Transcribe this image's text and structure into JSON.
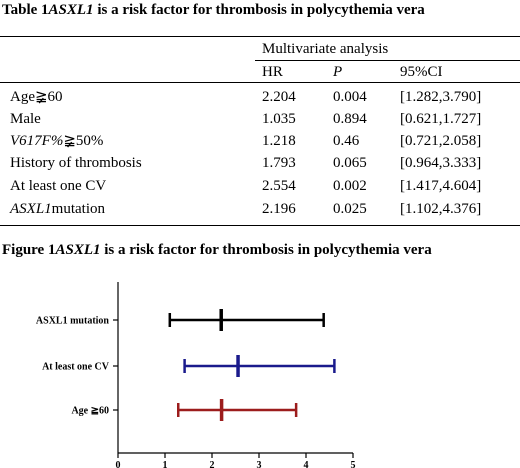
{
  "table": {
    "caption": {
      "number": "Table 1",
      "gene": "ASXL1",
      "rest": " is a risk factor for thrombosis in polycythemia vera"
    },
    "group_header": "Multivariate analysis",
    "columns": [
      "HR",
      "P",
      "95%CI"
    ],
    "rows": [
      {
        "label_pre": "Age≩60",
        "label_post": "",
        "hr": "2.204",
        "p": "0.004",
        "ci": "[1.282,3.790]"
      },
      {
        "label_pre": "Male",
        "label_post": "",
        "hr": "1.035",
        "p": "0.894",
        "ci": "[0.621,1.727]"
      },
      {
        "label_pre": "V617F%",
        "label_post": "≩50%",
        "hr": "1.218",
        "p": "0.46",
        "ci": "[0.721,2.058]"
      },
      {
        "label_pre": "History of thrombosis",
        "label_post": "",
        "hr": "1.793",
        "p": "0.065",
        "ci": "[0.964,3.333]"
      },
      {
        "label_pre": "At least one CV",
        "label_post": "",
        "hr": "2.554",
        "p": "0.002",
        "ci": "[1.417,4.604]"
      },
      {
        "label_pre": "ASXL1",
        "label_post": "mutation",
        "hr": "2.196",
        "p": "0.025",
        "ci": "[1.102,4.376]"
      }
    ]
  },
  "figure": {
    "caption": {
      "number": "Figure 1",
      "gene": "ASXL1",
      "rest": " is a risk factor for thrombosis in polycythemia vera"
    }
  },
  "chart_data": {
    "type": "forest",
    "categories": [
      "ASXL1 mutation",
      "At least one CV",
      "Age ≧60"
    ],
    "series": [
      {
        "estimate": 2.196,
        "lower": 1.102,
        "upper": 4.376,
        "color": "#000000"
      },
      {
        "estimate": 2.554,
        "lower": 1.417,
        "upper": 4.604,
        "color": "#1a1a8c"
      },
      {
        "estimate": 2.204,
        "lower": 1.282,
        "upper": 3.79,
        "color": "#9c1c1c"
      }
    ],
    "xticks": [
      "0",
      "1",
      "2",
      "3",
      "4",
      "5"
    ],
    "xlim": [
      0,
      5
    ],
    "grid": false
  }
}
